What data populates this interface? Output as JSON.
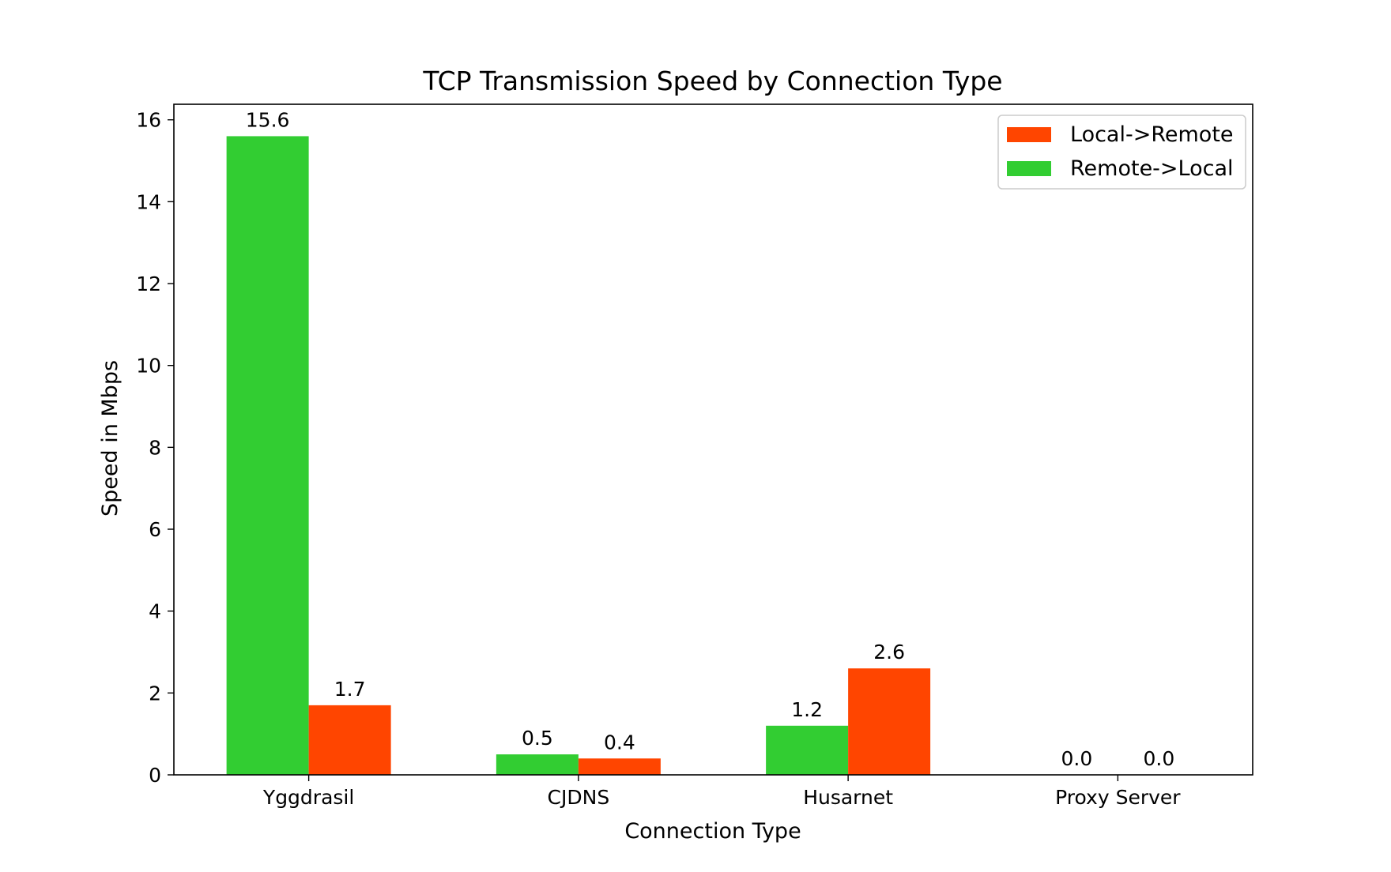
{
  "chart_data": {
    "type": "bar",
    "title": "TCP Transmission Speed by Connection Type",
    "xlabel": "Connection Type",
    "ylabel": "Speed in Mbps",
    "categories": [
      "Yggdrasil",
      "CJDNS",
      "Husarnet",
      "Proxy Server"
    ],
    "series": [
      {
        "name": "Remote->Local",
        "color": "#32cd32",
        "values": [
          15.6,
          0.5,
          1.2,
          0.0
        ],
        "labels": [
          "15.6",
          "0.5",
          "1.2",
          "0.0"
        ]
      },
      {
        "name": "Local->Remote",
        "color": "#ff4500",
        "values": [
          1.7,
          0.4,
          2.6,
          0.0
        ],
        "labels": [
          "1.7",
          "0.4",
          "2.6",
          "0.0"
        ]
      }
    ],
    "legend_order": [
      "Local->Remote",
      "Remote->Local"
    ],
    "legend_position": "top-right",
    "ylim": [
      0,
      16.38
    ],
    "yticks": [
      "0",
      "2",
      "4",
      "6",
      "8",
      "10",
      "12",
      "14",
      "16"
    ],
    "grid": false
  }
}
